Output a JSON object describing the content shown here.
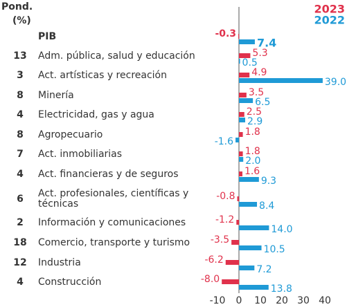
{
  "chart_data": {
    "type": "bar",
    "weight_header": [
      "Pond.",
      "(%)"
    ],
    "categories": [
      "PIB",
      "Adm. pública, salud y educación",
      "Act. artísticas y recreación",
      "Minería",
      "Electricidad, gas y agua",
      "Agropecuario",
      "Act. inmobiliarias",
      "Act. financieras y de seguros",
      "Act. profesionales, científicas y técnicas",
      "Información y comunicaciones",
      "Comercio, transporte y turismo",
      "Industria",
      "Construcción"
    ],
    "weights": [
      null,
      13,
      3,
      8,
      4,
      8,
      7,
      4,
      6,
      2,
      18,
      12,
      4
    ],
    "series": [
      {
        "name": "2023",
        "color": "#e0314b",
        "values": [
          -0.3,
          5.3,
          4.9,
          3.5,
          2.5,
          1.8,
          1.8,
          1.6,
          -0.8,
          -1.2,
          -3.5,
          -6.2,
          -8.0
        ],
        "value_labels": [
          "-0.3",
          "5.3",
          "4.9",
          "3.5",
          "2.5",
          "1.8",
          "1.8",
          "1.6",
          "-0.8",
          "-1.2",
          "-3.5",
          "-6.2",
          "-8.0"
        ]
      },
      {
        "name": "2022",
        "color": "#1f9ad6",
        "values": [
          7.4,
          0.5,
          39.0,
          6.5,
          2.9,
          -1.6,
          2.0,
          9.3,
          8.4,
          14.0,
          10.5,
          7.2,
          13.8
        ],
        "value_labels": [
          "7.4",
          "0.5",
          "39.0",
          "6.5",
          "2.9",
          "-1.6",
          "2.0",
          "9.3",
          "8.4",
          "14.0",
          "10.5",
          "7.2",
          "13.8"
        ]
      }
    ],
    "xlim": [
      -13,
      50
    ],
    "xticks": [
      -10,
      0,
      10,
      20,
      30,
      40
    ]
  }
}
